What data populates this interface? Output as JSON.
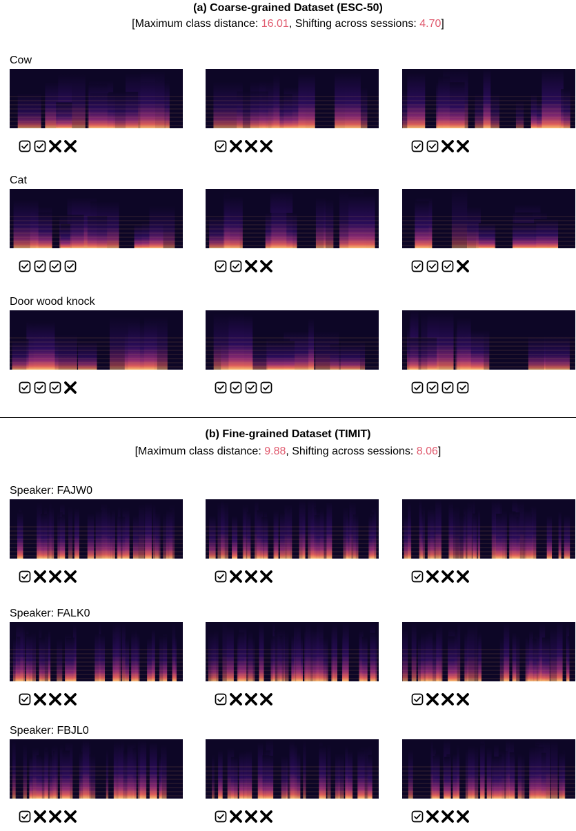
{
  "sections": [
    {
      "title": "(a) Coarse-grained Dataset (ESC-50)",
      "subtitle": [
        "[Maximum class distance: ",
        "16.01",
        ", Shifting across sessions: ",
        "4.70",
        "]"
      ],
      "rows": [
        {
          "label": "Cow",
          "items": [
            [
              true,
              true,
              false,
              false
            ],
            [
              true,
              false,
              false,
              false
            ],
            [
              true,
              true,
              false,
              false
            ]
          ]
        },
        {
          "label": "Cat",
          "items": [
            [
              true,
              true,
              true,
              true
            ],
            [
              true,
              true,
              false,
              false
            ],
            [
              true,
              true,
              true,
              false
            ]
          ]
        },
        {
          "label": "Door wood knock",
          "items": [
            [
              true,
              true,
              true,
              false
            ],
            [
              true,
              true,
              true,
              true
            ],
            [
              true,
              true,
              true,
              true
            ]
          ]
        }
      ]
    },
    {
      "title": "(b) Fine-grained Dataset (TIMIT)",
      "subtitle": [
        "[Maximum class distance: ",
        "9.88",
        ", Shifting across sessions: ",
        "8.06",
        "]"
      ],
      "rows": [
        {
          "label": "Speaker: FAJW0",
          "items": [
            [
              true,
              false,
              false,
              false
            ],
            [
              true,
              false,
              false,
              false
            ],
            [
              true,
              false,
              false,
              false
            ]
          ]
        },
        {
          "label": "Speaker: FALK0",
          "items": [
            [
              true,
              false,
              false,
              false
            ],
            [
              true,
              false,
              false,
              false
            ],
            [
              true,
              false,
              false,
              false
            ]
          ]
        },
        {
          "label": "Speaker: FBJL0",
          "items": [
            [
              true,
              false,
              false,
              false
            ],
            [
              true,
              false,
              false,
              false
            ],
            [
              true,
              false,
              false,
              false
            ]
          ]
        }
      ]
    }
  ]
}
